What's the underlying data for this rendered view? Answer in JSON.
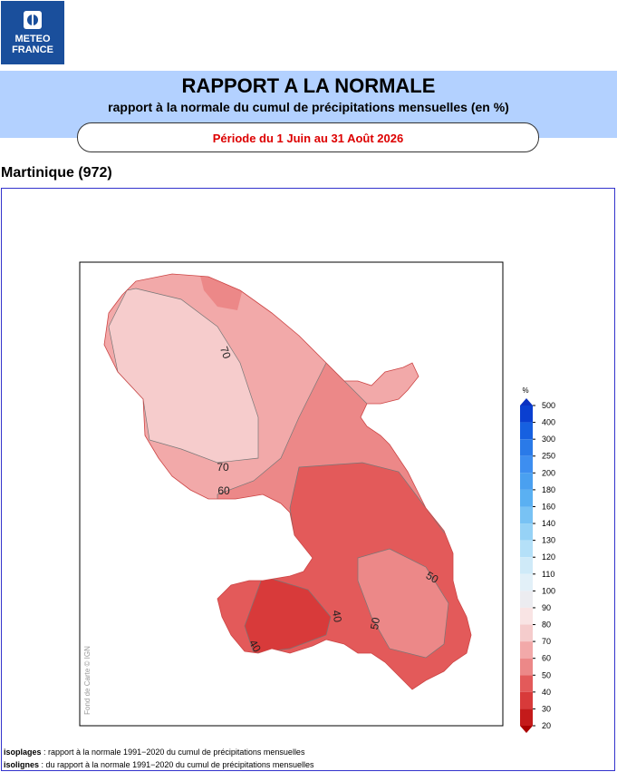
{
  "logo": {
    "line1": "METEO",
    "line2": "FRANCE"
  },
  "header": {
    "title": "RAPPORT A LA NORMALE",
    "subtitle": "rapport à la normale du cumul de précipitations mensuelles (en %)",
    "period": "Période du 1 Juin au 31 Août 2026"
  },
  "region": "Martinique (972)",
  "map": {
    "contour_labels": [
      "70",
      "70",
      "60",
      "50",
      "50",
      "40",
      "40"
    ],
    "credit": "Fond de Carte © IGN"
  },
  "legend": {
    "unit": "%",
    "ticks": [
      "500",
      "400",
      "300",
      "250",
      "200",
      "180",
      "160",
      "140",
      "130",
      "120",
      "110",
      "100",
      "90",
      "80",
      "70",
      "60",
      "50",
      "40",
      "30",
      "20"
    ]
  },
  "notes": [
    {
      "term": "isoplages",
      "text": " : rapport à la normale 1991−2020 du cumul de précipitations mensuelles"
    },
    {
      "term": "isolignes",
      "text": " : du rapport à la normale 1991−2020 du cumul de précipitations mensuelles"
    }
  ]
}
